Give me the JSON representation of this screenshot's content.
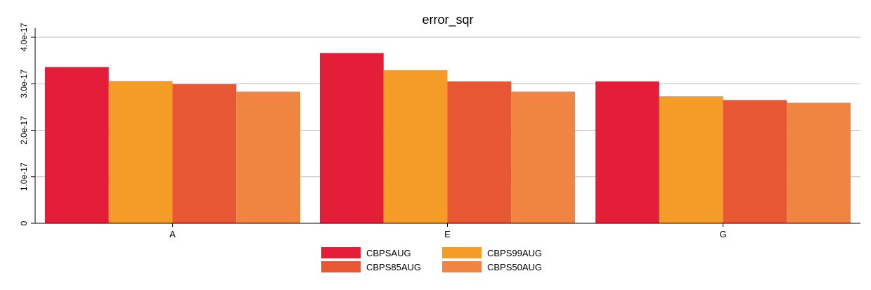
{
  "chart_data": {
    "type": "bar",
    "title": "error_sqr",
    "xlabel": "",
    "ylabel": "",
    "categories": [
      "A",
      "E",
      "G"
    ],
    "ylim": [
      0,
      4e-17
    ],
    "yticks": [
      0,
      1e-17,
      2e-17,
      3e-17,
      4e-17
    ],
    "ytick_labels": [
      "0",
      "1.0e-17",
      "2.0e-17",
      "3.0e-17",
      "4.0e-17"
    ],
    "grid": true,
    "legend_position": "bottom",
    "series": [
      {
        "name": "CBPSAUG",
        "color": "#e41e38",
        "values": [
          3.36e-17,
          3.66e-17,
          3.05e-17
        ]
      },
      {
        "name": "CBPS99AUG",
        "color": "#f59b27",
        "values": [
          3.06e-17,
          3.29e-17,
          2.73e-17
        ]
      },
      {
        "name": "CBPS85AUG",
        "color": "#e85734",
        "values": [
          2.99e-17,
          3.05e-17,
          2.65e-17
        ]
      },
      {
        "name": "CBPS50AUG",
        "color": "#f08542",
        "values": [
          2.83e-17,
          2.83e-17,
          2.59e-17
        ]
      }
    ]
  }
}
